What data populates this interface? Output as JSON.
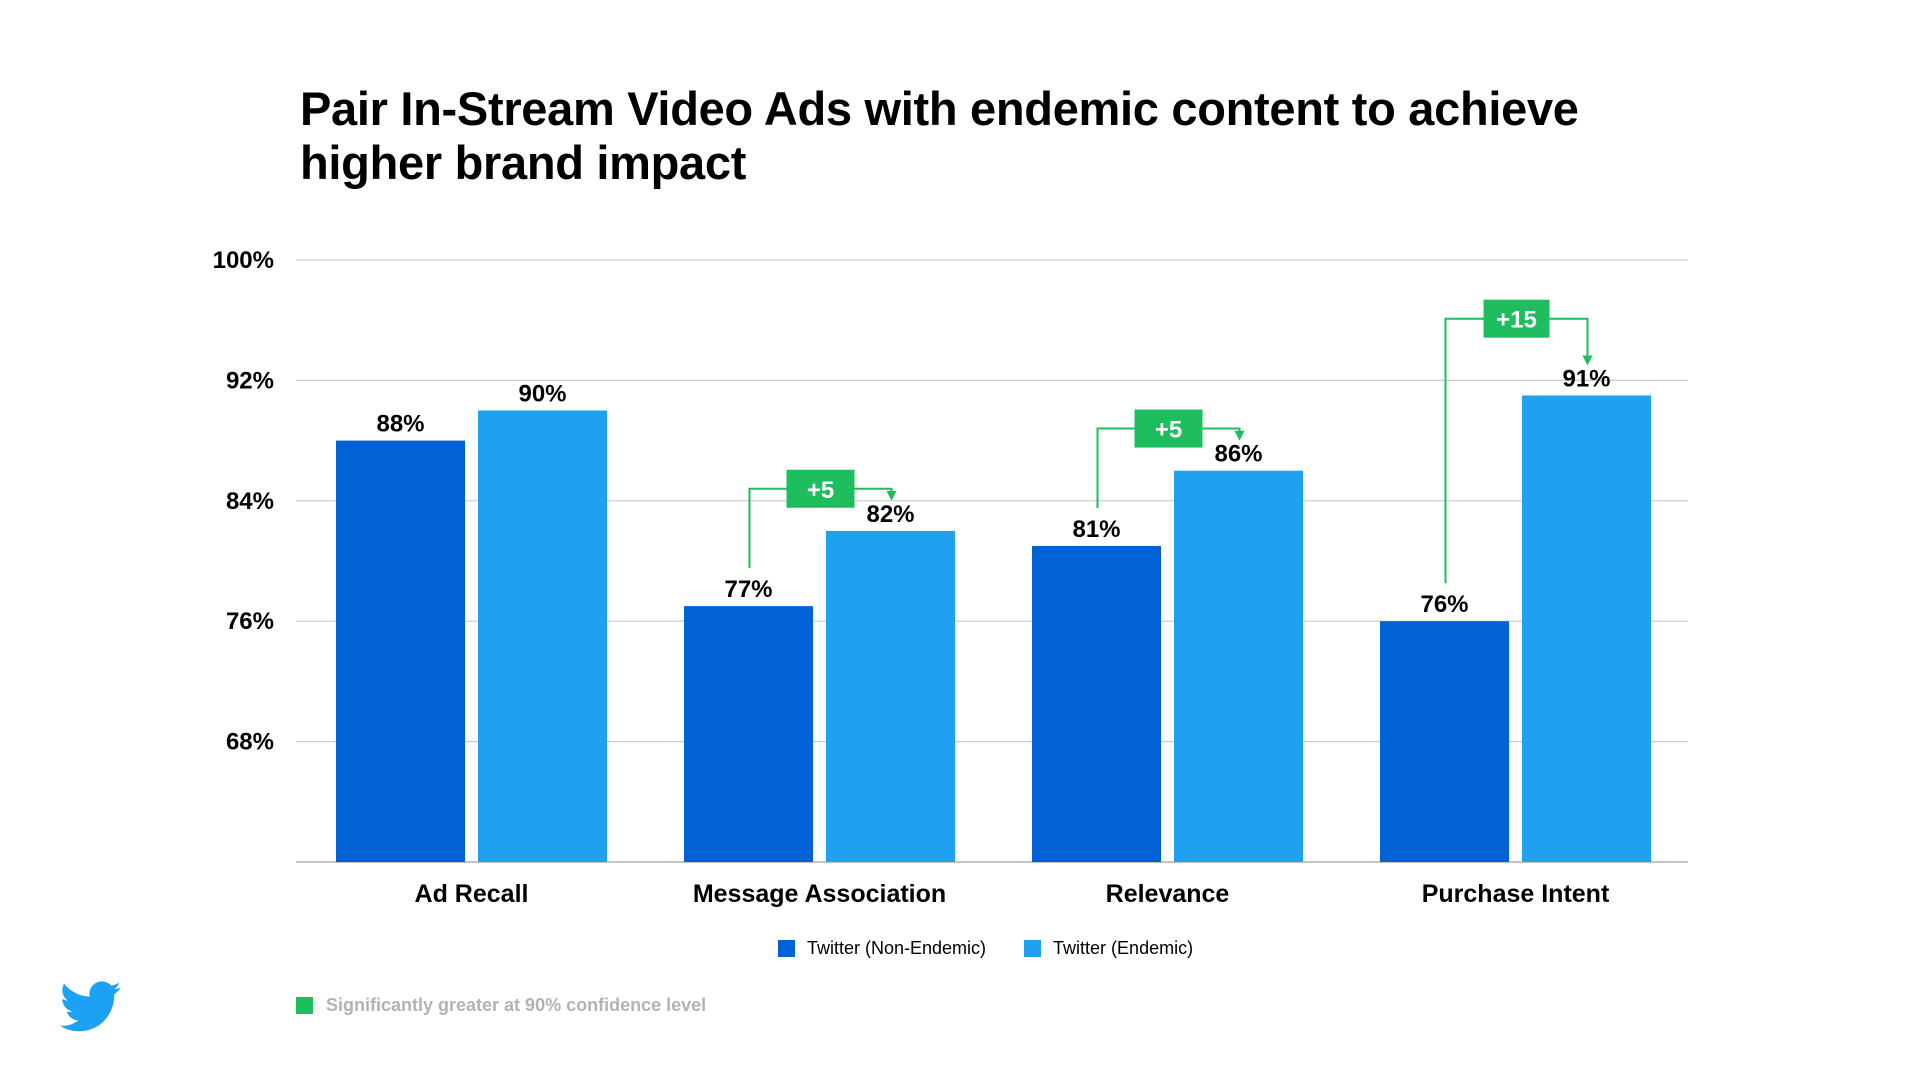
{
  "slide": {
    "footnote": "Significantly greater at 90% confidence level",
    "logo_icon": "twitter-bird-icon"
  },
  "colors": {
    "non_endemic": "#0162d6",
    "endemic": "#1fa1f0",
    "significance": "#1ebd5e",
    "grid": "#cccccc",
    "axis": "#b0b0b0",
    "footnote_text": "#b3b3b3",
    "logo": "#1da1f2"
  },
  "chart_data": {
    "type": "bar",
    "title": "Pair In-Stream Video Ads with endemic content to achieve higher brand impact",
    "xlabel": "",
    "ylabel": "",
    "categories": [
      "Ad Recall",
      "Message Association",
      "Relevance",
      "Purchase Intent"
    ],
    "series": [
      {
        "name": "Twitter (Non-Endemic)",
        "values": [
          88,
          77,
          81,
          76
        ],
        "labels": [
          "88%",
          "77%",
          "81%",
          "76%"
        ]
      },
      {
        "name": "Twitter (Endemic)",
        "values": [
          90,
          82,
          86,
          91
        ],
        "labels": [
          "90%",
          "82%",
          "86%",
          "91%"
        ]
      }
    ],
    "ylim": [
      60,
      100
    ],
    "yticks": [
      68,
      76,
      84,
      92,
      100
    ],
    "ytick_labels": [
      "68%",
      "76%",
      "84%",
      "92%",
      "100%"
    ],
    "grid": true,
    "legend": "bottom-center",
    "annotations": [
      {
        "category": "Message Association",
        "text": "+5",
        "peak": 84.8
      },
      {
        "category": "Relevance",
        "text": "+5",
        "peak": 88.8
      },
      {
        "category": "Purchase Intent",
        "text": "+15",
        "peak": 96.1
      }
    ]
  }
}
